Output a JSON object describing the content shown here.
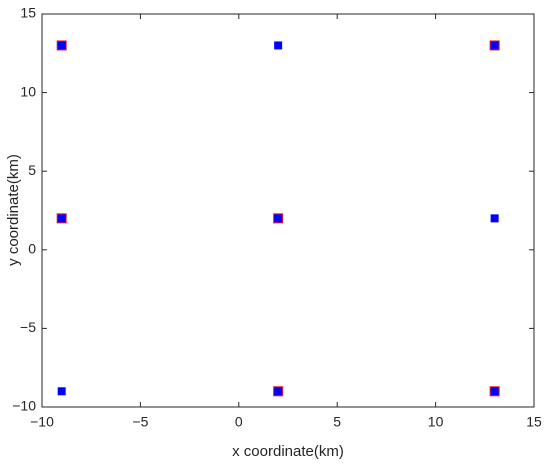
{
  "chart_data": {
    "type": "scatter",
    "xlabel": "x coordinate(km)",
    "ylabel": "y coordinate(km)",
    "xlim": [
      -10,
      15
    ],
    "ylim": [
      -10,
      15
    ],
    "xticks": [
      {
        "value": -10,
        "label": "−10"
      },
      {
        "value": -5,
        "label": "−5"
      },
      0,
      5,
      10,
      15
    ],
    "yticks": [
      {
        "value": -10,
        "label": "−10"
      },
      {
        "value": -5,
        "label": "−5"
      },
      0,
      5,
      10,
      15
    ],
    "grid": false,
    "series": [
      {
        "color": "#e8191b",
        "marker_size": 10,
        "x": [
          -9,
          13,
          -9,
          2,
          2,
          13
        ],
        "values": [
          13,
          13,
          2,
          2,
          -9,
          -9
        ]
      },
      {
        "color": "#0000ff",
        "marker_size": 8,
        "x": [
          -9,
          2,
          13,
          -9,
          2,
          13,
          -9,
          2,
          13
        ],
        "values": [
          13,
          13,
          13,
          2,
          2,
          2,
          -9,
          -9,
          -9
        ]
      }
    ]
  }
}
